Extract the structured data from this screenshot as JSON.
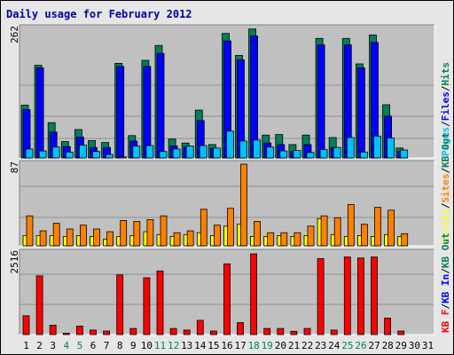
{
  "title": "Daily usage for February 2012",
  "colors": {
    "hits": "#00805c",
    "files": "#0000ff",
    "pages": "#00c0ff",
    "visits": "#ffff00",
    "sites": "#ff8000",
    "kb_in": "#ff0000",
    "panel": "#c0c0c0",
    "frame": "#e6e6e6",
    "title": "#0000a8",
    "weekend_day": "#00805c"
  },
  "chart_data": [
    {
      "type": "bar",
      "max_label": "262",
      "ylim": [
        0,
        262
      ],
      "legend_parts": [
        {
          "text": "Pages",
          "color": "#00c0ff"
        },
        {
          "text": "/",
          "color": "#000000"
        },
        {
          "text": "Files",
          "color": "#0000ff"
        },
        {
          "text": "/",
          "color": "#000000"
        },
        {
          "text": "Hits",
          "color": "#00805c"
        }
      ],
      "series": [
        {
          "name": "Hits",
          "color": "#00805c",
          "values": [
            106,
            186,
            71,
            33,
            57,
            35,
            31,
            190,
            45,
            196,
            226,
            38,
            30,
            96,
            27,
            250,
            206,
            259,
            46,
            47,
            27,
            46,
            240,
            41,
            240,
            189,
            247,
            107,
            20,
            0,
            0
          ]
        },
        {
          "name": "Files",
          "color": "#0000ff",
          "values": [
            97,
            181,
            52,
            23,
            42,
            21,
            21,
            184,
            34,
            184,
            210,
            24,
            22,
            75,
            19,
            235,
            197,
            245,
            30,
            27,
            13,
            27,
            227,
            21,
            227,
            181,
            232,
            84,
            13,
            0,
            0
          ]
        },
        {
          "name": "Pages",
          "color": "#00c0ff",
          "values": [
            18,
            14,
            22,
            12,
            26,
            13,
            7,
            2,
            24,
            25,
            13,
            18,
            24,
            25,
            20,
            54,
            34,
            36,
            22,
            14,
            15,
            11,
            17,
            21,
            41,
            12,
            44,
            40,
            16,
            0,
            0
          ]
        }
      ]
    },
    {
      "type": "bar",
      "max_label": "87",
      "ylim": [
        0,
        87
      ],
      "legend_parts": [
        {
          "text": "Visits",
          "color": "#ffff00"
        },
        {
          "text": "/",
          "color": "#000000"
        },
        {
          "text": "Sites",
          "color": "#ff8000"
        },
        {
          "text": "/",
          "color": "#000000"
        },
        {
          "text": "KB Out",
          "color": "#00805c"
        }
      ],
      "series": [
        {
          "name": "Visits",
          "color": "#ffff00",
          "values": [
            11,
            11,
            11,
            10,
            11,
            10,
            7,
            10,
            11,
            15,
            12,
            10,
            12,
            14,
            11,
            21,
            23,
            10,
            10,
            11,
            10,
            11,
            29,
            12,
            10,
            11,
            10,
            12,
            10,
            0,
            0
          ]
        },
        {
          "name": "Sites",
          "color": "#ff8000",
          "values": [
            32,
            16,
            24,
            18,
            22,
            18,
            15,
            27,
            26,
            28,
            32,
            14,
            16,
            39,
            22,
            40,
            87,
            26,
            14,
            14,
            14,
            21,
            32,
            30,
            44,
            23,
            41,
            38,
            13,
            0,
            0
          ]
        }
      ]
    },
    {
      "type": "bar",
      "max_label": "2516",
      "ylim": [
        0,
        2516
      ],
      "legend_parts": [
        {
          "text": "KB F",
          "color": "#ff0000"
        },
        {
          "text": "/",
          "color": "#000000"
        },
        {
          "text": "KB In",
          "color": "#0000ff"
        },
        {
          "text": "/",
          "color": "#000000"
        },
        {
          "text": "KB Out",
          "color": "#00805c"
        }
      ],
      "series": [
        {
          "name": "KB F",
          "color": "#ff0000",
          "values": [
            580,
            1810,
            290,
            40,
            260,
            140,
            110,
            1840,
            190,
            1750,
            1960,
            190,
            140,
            440,
            110,
            2180,
            370,
            2490,
            190,
            190,
            100,
            190,
            2340,
            140,
            2390,
            2360,
            2390,
            510,
            110,
            0,
            0
          ]
        }
      ]
    }
  ],
  "x_days": [
    "1",
    "2",
    "3",
    "4",
    "5",
    "6",
    "7",
    "8",
    "9",
    "10",
    "11",
    "12",
    "13",
    "14",
    "15",
    "16",
    "17",
    "18",
    "19",
    "20",
    "21",
    "22",
    "23",
    "24",
    "25",
    "26",
    "27",
    "28",
    "29",
    "30",
    "31"
  ],
  "weekend_days": [
    4,
    5,
    11,
    12,
    18,
    19,
    25,
    26
  ]
}
